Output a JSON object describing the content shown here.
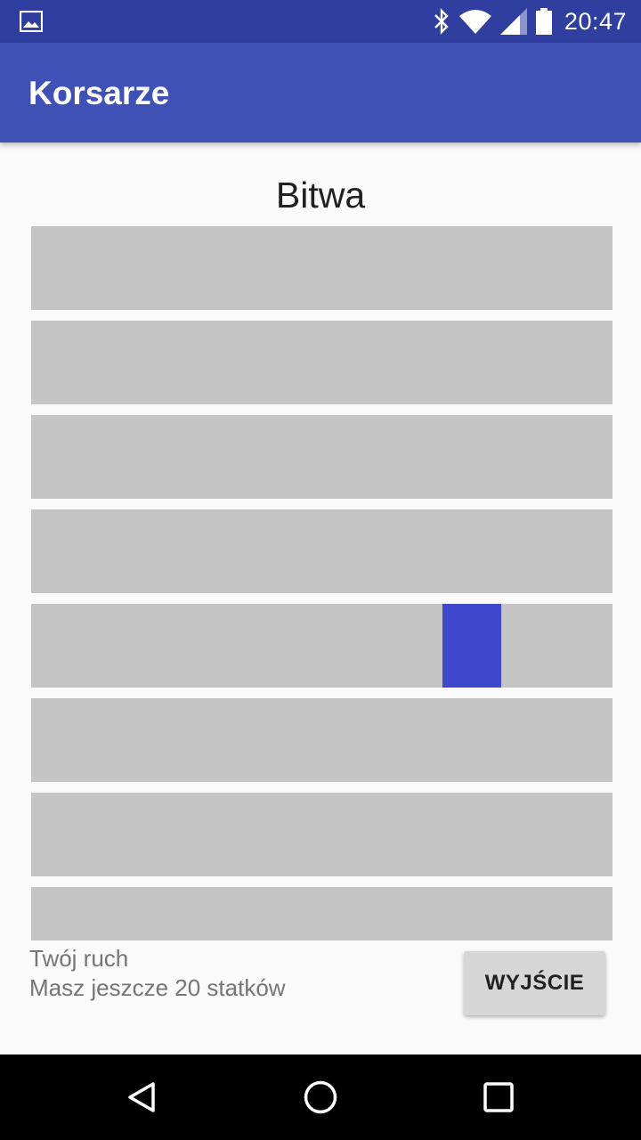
{
  "status_bar": {
    "time": "20:47",
    "icons": [
      "image-notification-icon",
      "bluetooth-icon",
      "wifi-icon",
      "cellular-signal-icon",
      "battery-icon"
    ]
  },
  "app_bar": {
    "title": "Korsarze"
  },
  "board": {
    "heading": "Bitwa",
    "rows": 8,
    "ship_cell": {
      "row": 5
    }
  },
  "footer": {
    "turn_text": "Twój ruch",
    "ships_text": "Masz jeszcze 20 statków",
    "exit_label": "WYJŚCIE"
  },
  "nav_bar": {
    "buttons": [
      "back-icon",
      "home-icon",
      "recent-apps-icon"
    ]
  },
  "colors": {
    "primary": "#3f51b5",
    "primary_dark": "#303f9f",
    "cell": "#c4c4c4",
    "ship": "#3f48cc"
  }
}
